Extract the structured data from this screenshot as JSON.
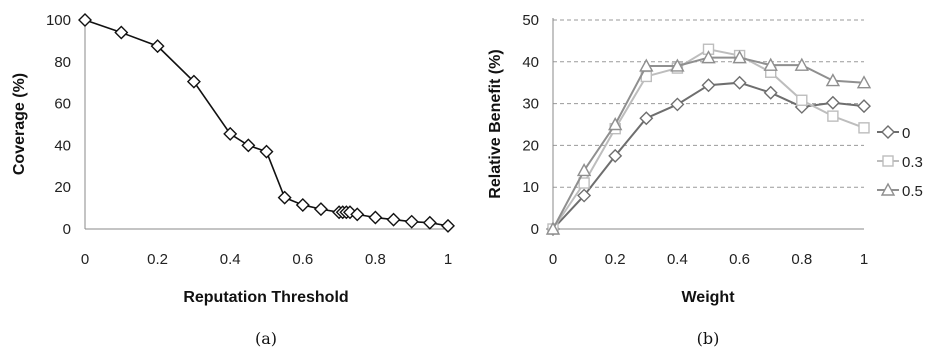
{
  "panels": [
    {
      "caption": "(a)",
      "chart_data": {
        "type": "line",
        "title": "",
        "xlabel": "Reputation Threshold",
        "ylabel": "Coverage (%)",
        "xlim": [
          0,
          1
        ],
        "ylim": [
          0,
          100
        ],
        "xticks": [
          "0",
          "0.2",
          "0.4",
          "0.6",
          "0.8",
          "1"
        ],
        "yticks": [
          "0",
          "20",
          "40",
          "60",
          "80",
          "100"
        ],
        "grid": false,
        "legend": "none",
        "series": [
          {
            "marker": "diamond",
            "color": "#111111",
            "x": [
              0,
              0.1,
              0.2,
              0.3,
              0.4,
              0.45,
              0.5,
              0.55,
              0.6,
              0.65,
              0.7,
              0.71,
              0.72,
              0.73,
              0.75,
              0.8,
              0.85,
              0.9,
              0.95,
              1.0
            ],
            "y": [
              100,
              94,
              87.5,
              70.5,
              45.5,
              40,
              37,
              15,
              11.5,
              9.5,
              8,
              8,
              8,
              8,
              7,
              5.5,
              4.5,
              3.5,
              3,
              1.5
            ]
          }
        ]
      }
    },
    {
      "caption": "(b)",
      "chart_data": {
        "type": "line",
        "title": "",
        "xlabel": "Weight",
        "ylabel": "Relative Benefit (%)",
        "xlim": [
          0,
          1
        ],
        "ylim": [
          0,
          50
        ],
        "xticks": [
          "0",
          "0.2",
          "0.4",
          "0.6",
          "0.8",
          "1"
        ],
        "yticks": [
          "0",
          "10",
          "20",
          "30",
          "40",
          "50"
        ],
        "grid": true,
        "legend": "right",
        "x": [
          0,
          0.1,
          0.2,
          0.3,
          0.4,
          0.5,
          0.6,
          0.7,
          0.8,
          0.9,
          1.0
        ],
        "series": [
          {
            "name": "0",
            "marker": "diamond",
            "color": "#6e6e6e",
            "values": [
              0,
              8,
              17.5,
              26.5,
              29.8,
              34.4,
              35,
              32.6,
              29.2,
              30.2,
              29.4
            ]
          },
          {
            "name": "0.3",
            "marker": "square",
            "color": "#bdbdbd",
            "values": [
              0,
              11,
              24,
              36.5,
              38.5,
              43,
              41.5,
              37.5,
              30.8,
              27,
              24.2
            ]
          },
          {
            "name": "0.5",
            "marker": "triangle",
            "color": "#8f8f8f",
            "values": [
              0,
              14,
              25,
              39,
              39,
              41,
              41,
              39.2,
              39.2,
              35.5,
              35
            ]
          }
        ]
      }
    }
  ]
}
